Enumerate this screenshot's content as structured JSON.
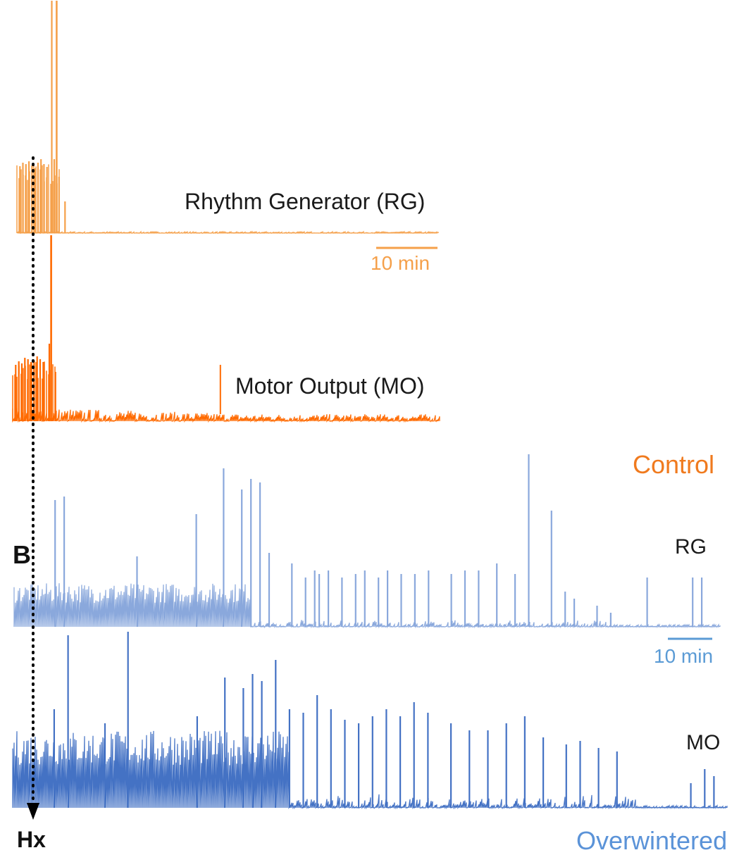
{
  "figure": {
    "panel_label": "B",
    "event_label": "Hx",
    "groups": {
      "control": {
        "label": "Control",
        "color": "#f07a1e"
      },
      "overwintered": {
        "label": "Overwintered",
        "color": "#5b93d8"
      }
    },
    "traces": [
      {
        "id": "control-rg",
        "label": "Rhythm Generator (RG)",
        "color": "#f5a04a"
      },
      {
        "id": "control-mo",
        "label": "Motor Output (MO)",
        "color": "#ff6a00"
      },
      {
        "id": "overwintered-rg",
        "label": "RG",
        "color": "#8aa8dc"
      },
      {
        "id": "overwintered-mo",
        "label": "MO",
        "color": "#4472c4"
      }
    ],
    "scale_bars": [
      {
        "label": "10 min",
        "color": "#f5a04a"
      },
      {
        "label": "10 min",
        "color": "#5b9bd5"
      }
    ]
  },
  "chart_data": {
    "type": "line",
    "xlabel": "",
    "ylabel": "",
    "series": [
      {
        "name": "Rhythm Generator (RG)",
        "group": "Control",
        "spike_times_min": [
          0.5,
          1,
          1.5,
          2,
          2.5,
          3,
          3.5,
          4,
          4.5,
          5,
          5.8,
          6.2,
          7.0,
          8.0
        ],
        "peak_spike_min": 6.6,
        "activity_end_min": 9,
        "duration_min": 70
      },
      {
        "name": "Motor Output (MO)",
        "group": "Control",
        "spike_times_min": [
          0.5,
          1,
          1.5,
          2,
          2.5,
          3,
          3.5,
          4,
          4.5,
          5,
          6.0,
          7.0
        ],
        "peak_spike_min": 6.3,
        "late_spike_min": 34,
        "duration_min": 70
      },
      {
        "name": "RG",
        "group": "Overwintered",
        "spike_times_min": [
          9,
          11,
          27,
          40,
          46,
          50,
          52,
          54,
          56,
          61,
          64,
          66,
          67,
          69,
          72,
          75,
          77,
          80,
          82,
          85,
          88,
          91,
          96,
          99,
          102,
          106,
          110,
          113,
          118,
          121,
          123,
          128,
          131,
          139,
          149,
          151
        ],
        "dense_until_min": 52,
        "activity_end_min": 130,
        "late_burst_min": [
          149,
          151
        ],
        "duration_min": 155
      },
      {
        "name": "MO",
        "group": "Overwintered",
        "spike_times_min": [
          9,
          12,
          20,
          25,
          40,
          46,
          50,
          52,
          54,
          57,
          60,
          63,
          66,
          69,
          72,
          75,
          78,
          81,
          84,
          87,
          90,
          95,
          99,
          103,
          107,
          111,
          115,
          120,
          123,
          127,
          131,
          147,
          150,
          152
        ],
        "dense_until_min": 60,
        "activity_end_min": 135,
        "late_burst_min": [
          147,
          150,
          152
        ],
        "duration_min": 155
      }
    ]
  }
}
